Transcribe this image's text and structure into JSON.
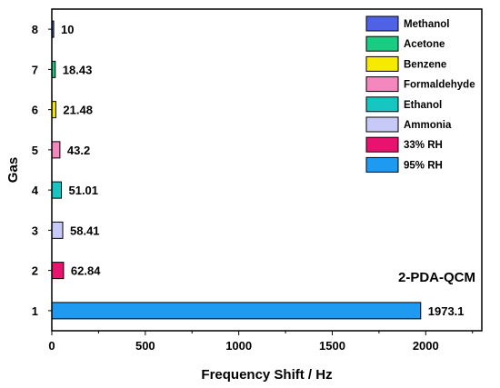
{
  "chart_data": {
    "type": "bar",
    "orientation": "horizontal",
    "xlabel": "Frequency Shift / Hz",
    "ylabel": "Gas",
    "xlim": [
      0,
      2300
    ],
    "xticks": [
      0,
      500,
      1000,
      1500,
      2000
    ],
    "ylim": [
      0.5,
      8.5
    ],
    "categories": [
      "1",
      "2",
      "3",
      "4",
      "5",
      "6",
      "7",
      "8"
    ],
    "values": [
      1973.1,
      62.84,
      58.41,
      51.01,
      43.2,
      21.48,
      18.43,
      10
    ],
    "value_labels": [
      "1973.1",
      "62.84",
      "58.41",
      "51.01",
      "43.2",
      "21.48",
      "18.43",
      "10"
    ],
    "bar_colors": [
      "#1e9bf0",
      "#e8136f",
      "#c7c9f6",
      "#17c6c1",
      "#f587bf",
      "#f5ea00",
      "#19cc82",
      "#4f62e6"
    ],
    "annotation": "2-PDA-QCM",
    "legend": {
      "position": "top-right",
      "entries": [
        {
          "name": "Methanol",
          "color": "#4f62e6"
        },
        {
          "name": "Acetone",
          "color": "#19cc82"
        },
        {
          "name": "Benzene",
          "color": "#f5ea00"
        },
        {
          "name": "Formaldehyde",
          "color": "#f587bf"
        },
        {
          "name": "Ethanol",
          "color": "#17c6c1"
        },
        {
          "name": "Ammonia",
          "color": "#c7c9f6"
        },
        {
          "name": "33% RH",
          "color": "#e8136f"
        },
        {
          "name": "95% RH",
          "color": "#1e9bf0"
        }
      ]
    },
    "grid": false
  }
}
